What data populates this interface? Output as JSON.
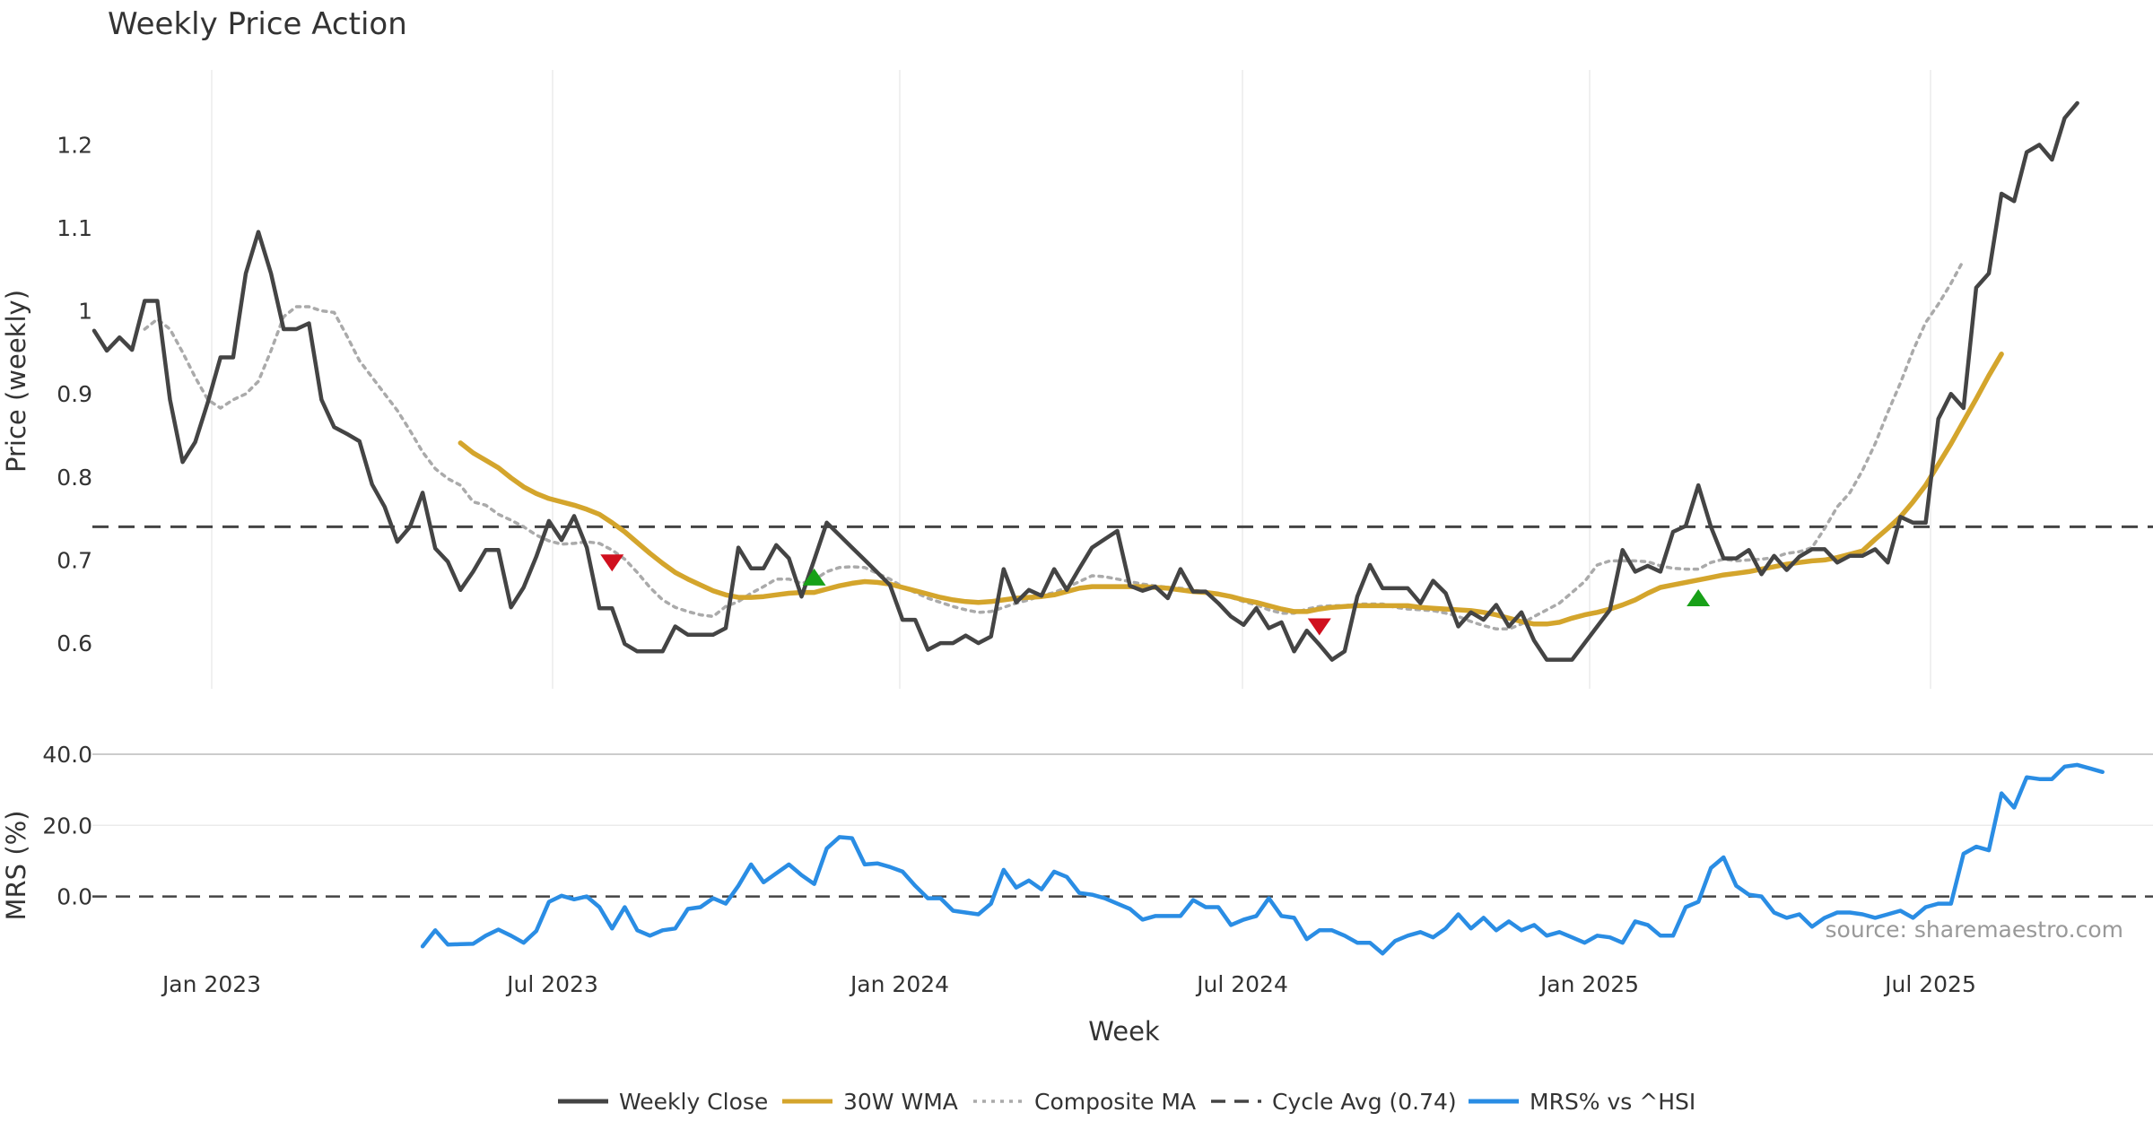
{
  "chart_data": {
    "type": "line",
    "title": "Weekly Price Action",
    "xlabel": "Week",
    "source": "source: sharemaestro.com",
    "x_ticks": [
      "Jan 2023",
      "Jul 2023",
      "Jan 2024",
      "Jul 2024",
      "Jan 2025",
      "Jul 2025"
    ],
    "price_panel": {
      "ylabel": "Price (weekly)",
      "ylim": [
        0.545,
        1.29
      ],
      "y_ticks": [
        0.6,
        0.7,
        0.8,
        0.9,
        1.0,
        1.1,
        1.2
      ],
      "y_tick_labels": [
        "0.6",
        "0.7",
        "0.8",
        "0.9",
        "1",
        "1.1",
        "1.2"
      ],
      "cycle_avg": 0.74,
      "series": [
        {
          "name": "Weekly Close",
          "start_index": 0,
          "values": [
            0.976,
            0.952,
            0.968,
            0.953,
            1.012,
            1.012,
            0.893,
            0.818,
            0.842,
            0.89,
            0.944,
            0.944,
            1.045,
            1.095,
            1.045,
            0.978,
            0.978,
            0.985,
            0.893,
            0.86,
            0.852,
            0.843,
            0.791,
            0.764,
            0.722,
            0.74,
            0.781,
            0.714,
            0.698,
            0.664,
            0.686,
            0.712,
            0.712,
            0.643,
            0.667,
            0.704,
            0.747,
            0.724,
            0.753,
            0.715,
            0.642,
            0.642,
            0.599,
            0.59,
            0.59,
            0.59,
            0.62,
            0.61,
            0.61,
            0.61,
            0.618,
            0.715,
            0.69,
            0.69,
            0.718,
            0.702,
            0.656,
            0.7,
            0.745,
            0.73,
            0.715,
            0.7,
            0.685,
            0.67,
            0.628,
            0.628,
            0.592,
            0.6,
            0.6,
            0.609,
            0.6,
            0.608,
            0.689,
            0.649,
            0.664,
            0.657,
            0.689,
            0.664,
            0.69,
            0.715,
            0.725,
            0.735,
            0.669,
            0.663,
            0.668,
            0.654,
            0.689,
            0.662,
            0.662,
            0.648,
            0.632,
            0.622,
            0.642,
            0.618,
            0.625,
            0.59,
            0.615,
            0.598,
            0.58,
            0.59,
            0.656,
            0.694,
            0.666,
            0.666,
            0.666,
            0.648,
            0.675,
            0.66,
            0.62,
            0.637,
            0.628,
            0.646,
            0.62,
            0.637,
            0.603,
            0.58,
            0.58,
            0.58,
            0.6,
            0.62,
            0.64,
            0.712,
            0.686,
            0.693,
            0.686,
            0.734,
            0.741,
            0.79,
            0.74,
            0.702,
            0.702,
            0.712,
            0.683,
            0.705,
            0.688,
            0.704,
            0.713,
            0.713,
            0.697,
            0.705,
            0.705,
            0.713,
            0.697,
            0.752,
            0.745,
            0.745,
            0.87,
            0.9,
            0.883,
            1.028,
            1.045,
            1.141,
            1.132,
            1.191,
            1.2,
            1.182,
            1.232,
            1.25
          ]
        },
        {
          "name": "30W WMA",
          "start_index": 29,
          "values": [
            0.841,
            0.829,
            0.82,
            0.811,
            0.799,
            0.788,
            0.78,
            0.774,
            0.77,
            0.766,
            0.761,
            0.755,
            0.745,
            0.734,
            0.721,
            0.708,
            0.696,
            0.685,
            0.677,
            0.67,
            0.663,
            0.658,
            0.655,
            0.655,
            0.656,
            0.658,
            0.66,
            0.661,
            0.661,
            0.665,
            0.669,
            0.672,
            0.674,
            0.673,
            0.671,
            0.667,
            0.663,
            0.659,
            0.655,
            0.652,
            0.65,
            0.649,
            0.65,
            0.652,
            0.654,
            0.655,
            0.656,
            0.658,
            0.662,
            0.666,
            0.668,
            0.668,
            0.668,
            0.668,
            0.668,
            0.667,
            0.666,
            0.664,
            0.662,
            0.661,
            0.659,
            0.656,
            0.652,
            0.649,
            0.645,
            0.641,
            0.638,
            0.638,
            0.641,
            0.643,
            0.644,
            0.645,
            0.645,
            0.645,
            0.645,
            0.645,
            0.643,
            0.642,
            0.641,
            0.64,
            0.639,
            0.637,
            0.634,
            0.63,
            0.626,
            0.623,
            0.623,
            0.625,
            0.63,
            0.634,
            0.637,
            0.641,
            0.646,
            0.652,
            0.66,
            0.667,
            0.67,
            0.673,
            0.676,
            0.679,
            0.682,
            0.684,
            0.686,
            0.689,
            0.692,
            0.695,
            0.697,
            0.699,
            0.7,
            0.703,
            0.707,
            0.711,
            0.725,
            0.738,
            0.752,
            0.77,
            0.79,
            0.815,
            0.84,
            0.867,
            0.894,
            0.922,
            0.948
          ]
        },
        {
          "name": "Composite MA",
          "start_index": 4,
          "values": [
            0.978,
            0.99,
            0.978,
            0.95,
            0.92,
            0.893,
            0.883,
            0.893,
            0.9,
            0.915,
            0.952,
            0.993,
            1.005,
            1.005,
            1.0,
            0.998,
            0.97,
            0.94,
            0.92,
            0.9,
            0.88,
            0.856,
            0.83,
            0.81,
            0.798,
            0.79,
            0.77,
            0.766,
            0.755,
            0.748,
            0.74,
            0.73,
            0.723,
            0.719,
            0.72,
            0.722,
            0.72,
            0.712,
            0.701,
            0.685,
            0.667,
            0.652,
            0.643,
            0.638,
            0.634,
            0.632,
            0.644,
            0.65,
            0.66,
            0.668,
            0.677,
            0.677,
            0.672,
            0.676,
            0.686,
            0.691,
            0.692,
            0.691,
            0.684,
            0.677,
            0.668,
            0.661,
            0.654,
            0.649,
            0.644,
            0.64,
            0.637,
            0.638,
            0.643,
            0.648,
            0.652,
            0.657,
            0.661,
            0.667,
            0.674,
            0.681,
            0.68,
            0.677,
            0.674,
            0.671,
            0.669,
            0.667,
            0.666,
            0.664,
            0.661,
            0.659,
            0.655,
            0.65,
            0.646,
            0.64,
            0.636,
            0.636,
            0.641,
            0.644,
            0.645,
            0.645,
            0.647,
            0.647,
            0.647,
            0.643,
            0.641,
            0.64,
            0.639,
            0.636,
            0.632,
            0.626,
            0.621,
            0.617,
            0.617,
            0.623,
            0.632,
            0.64,
            0.648,
            0.661,
            0.674,
            0.694,
            0.699,
            0.699,
            0.699,
            0.698,
            0.693,
            0.69,
            0.689,
            0.689,
            0.697,
            0.701,
            0.699,
            0.7,
            0.701,
            0.703,
            0.708,
            0.71,
            0.715,
            0.738,
            0.764,
            0.781,
            0.808,
            0.84,
            0.878,
            0.913,
            0.952,
            0.986,
            1.008,
            1.033,
            1.061
          ]
        }
      ],
      "signals": [
        {
          "type": "sell",
          "index": 41,
          "value": 0.697
        },
        {
          "type": "buy",
          "index": 57,
          "value": 0.679
        },
        {
          "type": "sell",
          "index": 97,
          "value": 0.62
        },
        {
          "type": "buy",
          "index": 127,
          "value": 0.654
        }
      ]
    },
    "mrs_panel": {
      "ylabel": "MRS (%)",
      "ylim": [
        -19.0,
        41.5
      ],
      "y_ticks": [
        0,
        20,
        40
      ],
      "y_tick_labels": [
        "0.0",
        "20.0",
        "40.0"
      ],
      "series": [
        {
          "name": "MRS% vs ^HSI",
          "start_index": 26,
          "values": [
            -14.0,
            -9.5,
            -13.5,
            -13.4,
            -13.3,
            -11.0,
            -9.3,
            -11.0,
            -13.0,
            -9.7,
            -1.5,
            0.2,
            -0.8,
            0.0,
            -3.0,
            -9.0,
            -3.0,
            -9.5,
            -11.0,
            -9.5,
            -9.0,
            -3.5,
            -3.0,
            -0.5,
            -2.0,
            3.0,
            9.0,
            4.0,
            6.5,
            9.0,
            6.0,
            3.5,
            13.5,
            16.7,
            16.4,
            9.0,
            9.3,
            8.3,
            7.0,
            3.0,
            -0.5,
            -0.5,
            -4.0,
            -4.5,
            -5.0,
            -2.0,
            7.5,
            2.5,
            4.5,
            2.0,
            7.0,
            5.5,
            1.0,
            0.5,
            -0.5,
            -2.0,
            -3.5,
            -6.5,
            -5.5,
            -5.5,
            -5.5,
            -1.0,
            -3.0,
            -3.0,
            -8.0,
            -6.5,
            -5.5,
            -0.5,
            -5.5,
            -6.0,
            -12.0,
            -9.5,
            -9.5,
            -11.0,
            -13.0,
            -13.0,
            -16.0,
            -12.5,
            -11.0,
            -10.0,
            -11.5,
            -9.0,
            -5.0,
            -9.0,
            -6.0,
            -9.5,
            -7.0,
            -9.5,
            -8.0,
            -11.0,
            -10.0,
            -11.5,
            -13.0,
            -11.0,
            -11.5,
            -13.0,
            -7.0,
            -8.0,
            -11.0,
            -11.0,
            -3.0,
            -1.5,
            8.0,
            11.0,
            3.0,
            0.5,
            0.0,
            -4.5,
            -6.0,
            -5.0,
            -8.5,
            -6.0,
            -4.5,
            -4.5,
            -5.0,
            -6.0,
            -5.0,
            -4.0,
            -6.0,
            -3.0,
            -2.0,
            -2.0,
            12.0,
            14.0,
            13.0,
            29.0,
            25.0,
            33.5,
            33.0,
            33.0,
            36.5,
            37.0,
            36.0,
            35.0
          ]
        }
      ]
    },
    "legend": [
      {
        "label": "Weekly Close",
        "style": "solid",
        "color": "#444444"
      },
      {
        "label": "30W WMA",
        "style": "solid",
        "color": "#d4a52c"
      },
      {
        "label": "Composite MA",
        "style": "dotted",
        "color": "#aaaaaa"
      },
      {
        "label": "Cycle Avg (0.74)",
        "style": "dashed",
        "color": "#444444"
      },
      {
        "label": "MRS% vs ^HSI",
        "style": "solid",
        "color": "#2a8de4"
      }
    ],
    "colors": {
      "close": "#444444",
      "wma": "#d4a52c",
      "composite": "#aaaaaa",
      "cycle": "#444444",
      "mrs": "#2a8de4",
      "sell": "#d0101e",
      "buy": "#18a018",
      "grid": "#ebebeb"
    }
  }
}
